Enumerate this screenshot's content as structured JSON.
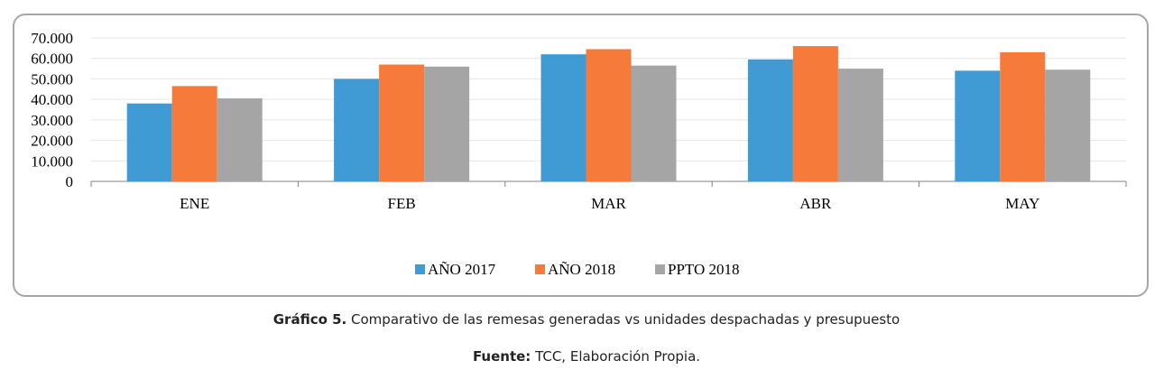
{
  "chart_data": {
    "type": "bar",
    "categories": [
      "ENE",
      "FEB",
      "MAR",
      "ABR",
      "MAY"
    ],
    "series": [
      {
        "name": "AÑO 2017",
        "values": [
          38000,
          50000,
          62000,
          59500,
          54000
        ],
        "color": "#409bd5"
      },
      {
        "name": "AÑO 2018",
        "values": [
          46500,
          57000,
          64500,
          66000,
          63000
        ],
        "color": "#f67b3a"
      },
      {
        "name": "PPTO 2018",
        "values": [
          40500,
          56000,
          56500,
          55000,
          54500
        ],
        "color": "#a5a5a5"
      }
    ],
    "yticks": [
      "0",
      "10.000",
      "20.000",
      "30.000",
      "40.000",
      "50.000",
      "60.000",
      "70.000"
    ],
    "ylim": [
      0,
      70000
    ],
    "grid": true,
    "legend_position": "bottom"
  },
  "caption": {
    "label": "Gráfico 5.",
    "text": " Comparativo de las remesas generadas vs unidades despachadas y presupuesto"
  },
  "source": {
    "label": "Fuente:",
    "text": " TCC, Elaboración Propia."
  }
}
